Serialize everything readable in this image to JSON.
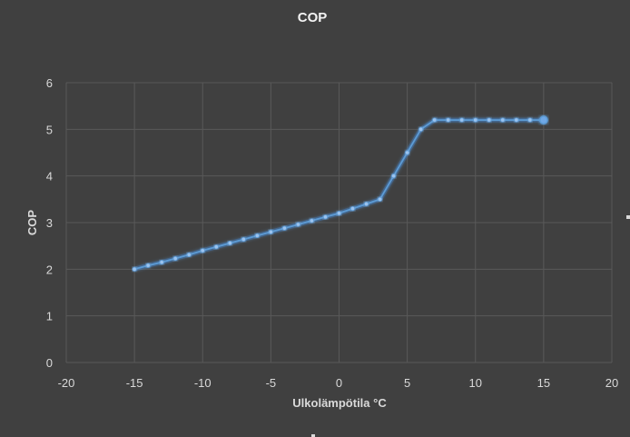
{
  "chart_data": {
    "type": "scatter",
    "title": "COP",
    "xlabel": "Ulkolämpötila °C",
    "ylabel": "COP",
    "xlim": [
      -20,
      20
    ],
    "ylim": [
      0,
      6
    ],
    "x_ticks": [
      "-20",
      "-15",
      "-10",
      "-5",
      "0",
      "5",
      "10",
      "15",
      "20"
    ],
    "y_ticks": [
      "0",
      "1",
      "2",
      "3",
      "4",
      "5",
      "6"
    ],
    "grid": true,
    "legend": "none",
    "line_style": "straight lines with markers, glow effect",
    "colors": {
      "background": "#404040",
      "gridline": "#595959",
      "series": "#5b9bd5",
      "glow": "#3a7fd8"
    },
    "series": [
      {
        "x": [
          -15,
          -14,
          -13,
          -12,
          -11,
          -10,
          -9,
          -8,
          -7,
          -6,
          -5,
          -4,
          -3,
          -2,
          -1,
          0,
          1,
          2,
          3,
          4,
          5,
          6,
          7,
          8,
          9,
          10,
          11,
          12,
          13,
          14,
          15
        ],
        "y": [
          2.0,
          2.08,
          2.15,
          2.23,
          2.31,
          2.4,
          2.48,
          2.56,
          2.64,
          2.72,
          2.8,
          2.88,
          2.96,
          3.04,
          3.12,
          3.2,
          3.3,
          3.4,
          3.5,
          4.0,
          4.5,
          5.0,
          5.2,
          5.2,
          5.2,
          5.2,
          5.2,
          5.2,
          5.2,
          5.2,
          5.2
        ]
      }
    ]
  }
}
